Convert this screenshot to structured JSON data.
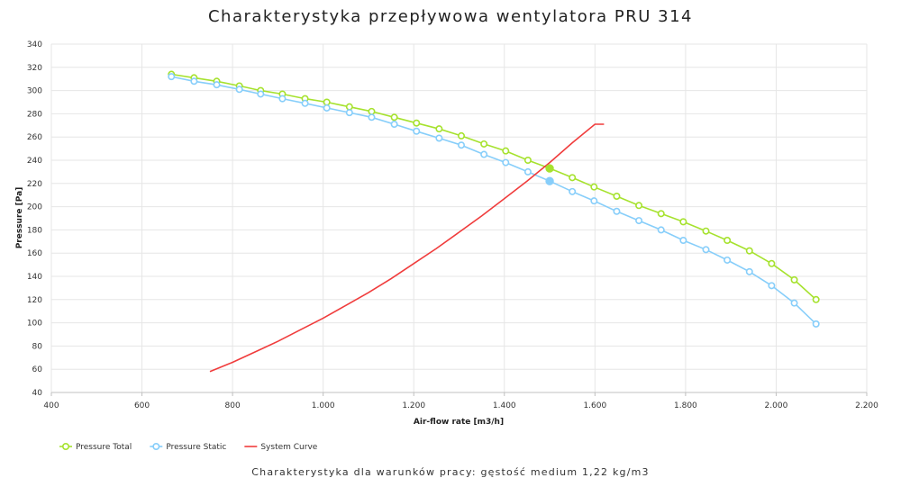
{
  "chart_data": {
    "type": "line",
    "title": "Charakterystyka przepływowa wentylatora PRU 314",
    "subtitle": "Charakterystyka dla warunków pracy: gęstość medium 1,22 kg/m3",
    "xlabel": "Air-flow rate [m3/h]",
    "ylabel": "Pressure [Pa]",
    "xlim": [
      400,
      2200
    ],
    "ylim": [
      40,
      340
    ],
    "grid": true,
    "legend_position": "bottom-left",
    "x_tick_labels": [
      "400",
      "600",
      "800",
      "1.000",
      "1.200",
      "1.400",
      "1.600",
      "1.800",
      "2.000",
      "2.200"
    ],
    "y_tick_labels": [
      "40",
      "60",
      "80",
      "100",
      "120",
      "140",
      "160",
      "180",
      "200",
      "220",
      "240",
      "260",
      "280",
      "300",
      "320",
      "340"
    ],
    "series": [
      {
        "name": "Pressure Total",
        "color": "#a6e22e",
        "marker": "circle",
        "x": [
          665,
          715,
          765,
          815,
          862,
          910,
          960,
          1008,
          1058,
          1107,
          1157,
          1206,
          1256,
          1305,
          1355,
          1403,
          1452,
          1500,
          1550,
          1598,
          1648,
          1697,
          1746,
          1795,
          1845,
          1892,
          1941,
          1990,
          2040,
          2088
        ],
        "y": [
          314,
          311,
          308,
          304,
          300,
          297,
          293,
          290,
          286,
          282,
          277,
          272,
          267,
          261,
          254,
          248,
          240,
          233,
          225,
          217,
          209,
          201,
          194,
          187,
          179,
          171,
          162,
          151,
          137,
          120
        ]
      },
      {
        "name": "Pressure Static",
        "color": "#87cefa",
        "marker": "circle",
        "x": [
          665,
          715,
          765,
          815,
          862,
          910,
          960,
          1008,
          1058,
          1107,
          1157,
          1206,
          1256,
          1305,
          1355,
          1403,
          1452,
          1500,
          1550,
          1598,
          1648,
          1697,
          1746,
          1795,
          1845,
          1892,
          1941,
          1990,
          2040,
          2088
        ],
        "y": [
          312,
          308,
          305,
          301,
          297,
          293,
          289,
          285,
          281,
          277,
          271,
          265,
          259,
          253,
          245,
          238,
          230,
          222,
          213,
          205,
          196,
          188,
          180,
          171,
          163,
          154,
          144,
          132,
          117,
          99
        ]
      },
      {
        "name": "System Curve",
        "color": "#f03c3c",
        "marker": "none",
        "x": [
          750,
          800,
          850,
          900,
          950,
          1000,
          1050,
          1100,
          1150,
          1200,
          1250,
          1300,
          1350,
          1400,
          1450,
          1500,
          1550,
          1600,
          1620
        ],
        "y": [
          58,
          66,
          75,
          84,
          94,
          104,
          115,
          126,
          138,
          151,
          164,
          178,
          192,
          207,
          222,
          238,
          255,
          271,
          271
        ]
      }
    ],
    "operating_points": [
      {
        "series": "Pressure Total",
        "x": 1500,
        "y": 233
      },
      {
        "series": "Pressure Static",
        "x": 1500,
        "y": 222
      }
    ]
  }
}
